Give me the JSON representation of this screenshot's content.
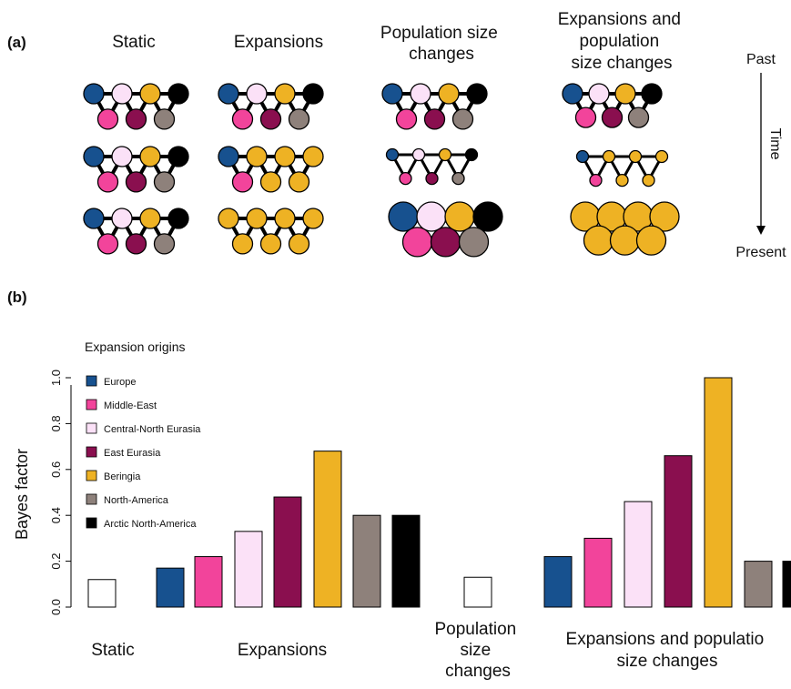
{
  "colors": {
    "europe": "#17518f",
    "middle_east": "#f2449b",
    "central_north_eurasia": "#fbe1f7",
    "east_eurasia": "#8a0f4f",
    "beringia": "#eeb224",
    "north_america": "#8e817b",
    "arctic_north_america": "#000000",
    "static": "#ffffff"
  },
  "panel_a": {
    "label": "(a)",
    "scenarios": [
      {
        "title": "Static",
        "type": "static"
      },
      {
        "title": "Expansions",
        "type": "expansions"
      },
      {
        "title": "Population size changes",
        "type": "popsize"
      },
      {
        "title": "Expansions and population size changes",
        "type": "exp_popsize"
      }
    ],
    "time_axis": {
      "past": "Past",
      "time": "Time",
      "present": "Present"
    }
  },
  "panel_b": {
    "label": "(b)",
    "legend": {
      "title": "Expansion origins",
      "items": [
        {
          "label": "Europe",
          "color": "#17518f"
        },
        {
          "label": "Middle-East",
          "color": "#f2449b"
        },
        {
          "label": "Central-North Eurasia",
          "color": "#fbe1f7"
        },
        {
          "label": "East Eurasia",
          "color": "#8a0f4f"
        },
        {
          "label": "Beringia",
          "color": "#eeb224"
        },
        {
          "label": "North-America",
          "color": "#8e817b"
        },
        {
          "label": "Arctic North-America",
          "color": "#000000"
        }
      ]
    },
    "group_labels": [
      {
        "text": "Static"
      },
      {
        "text": "Expansions"
      },
      {
        "text": "Population size changes"
      },
      {
        "text": "Expansions and populatio size changes"
      }
    ]
  },
  "chart_data": {
    "type": "bar",
    "ylabel": "Bayes factor",
    "ylim": [
      0,
      1.0
    ],
    "yticks": [
      "0.0",
      "0.2",
      "0.4",
      "0.6",
      "0.8",
      "1.0"
    ],
    "bars": [
      {
        "group": "Static",
        "origin": "none",
        "value": 0.12,
        "color": "#ffffff"
      },
      {
        "group": "Expansions",
        "origin": "Europe",
        "value": 0.17,
        "color": "#17518f"
      },
      {
        "group": "Expansions",
        "origin": "Middle-East",
        "value": 0.22,
        "color": "#f2449b"
      },
      {
        "group": "Expansions",
        "origin": "Central-North Eurasia",
        "value": 0.33,
        "color": "#fbe1f7"
      },
      {
        "group": "Expansions",
        "origin": "East Eurasia",
        "value": 0.48,
        "color": "#8a0f4f"
      },
      {
        "group": "Expansions",
        "origin": "Beringia",
        "value": 0.68,
        "color": "#eeb224"
      },
      {
        "group": "Expansions",
        "origin": "North-America",
        "value": 0.4,
        "color": "#8e817b"
      },
      {
        "group": "Expansions",
        "origin": "Arctic North-America",
        "value": 0.4,
        "color": "#000000"
      },
      {
        "group": "Population size changes",
        "origin": "none",
        "value": 0.13,
        "color": "#ffffff"
      },
      {
        "group": "Expansions and population size changes",
        "origin": "Europe",
        "value": 0.22,
        "color": "#17518f"
      },
      {
        "group": "Expansions and population size changes",
        "origin": "Middle-East",
        "value": 0.3,
        "color": "#f2449b"
      },
      {
        "group": "Expansions and population size changes",
        "origin": "Central-North Eurasia",
        "value": 0.46,
        "color": "#fbe1f7"
      },
      {
        "group": "Expansions and population size changes",
        "origin": "East Eurasia",
        "value": 0.66,
        "color": "#8a0f4f"
      },
      {
        "group": "Expansions and population size changes",
        "origin": "Beringia",
        "value": 1.0,
        "color": "#eeb224"
      },
      {
        "group": "Expansions and population size changes",
        "origin": "North-America",
        "value": 0.2,
        "color": "#8e817b"
      },
      {
        "group": "Expansions and population size changes",
        "origin": "Arctic North-America",
        "value": 0.2,
        "color": "#000000"
      }
    ]
  }
}
